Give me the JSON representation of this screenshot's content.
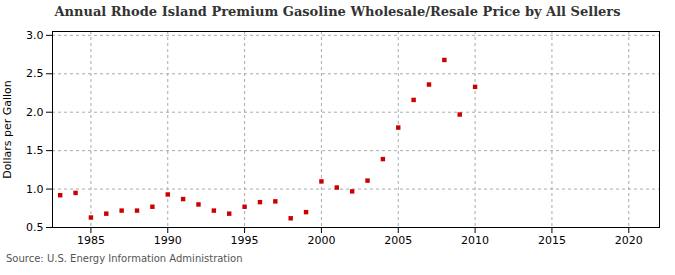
{
  "chart_data": {
    "type": "scatter",
    "title": "Annual Rhode Island Premium Gasoline Wholesale/Resale Price by All Sellers",
    "ylabel": "Dollars per Gallon",
    "annotation": "Source: U.S. Energy Information Administration",
    "x": [
      1983,
      1984,
      1985,
      1986,
      1987,
      1988,
      1989,
      1990,
      1991,
      1992,
      1993,
      1994,
      1995,
      1996,
      1997,
      1998,
      1999,
      2000,
      2001,
      2002,
      2003,
      2004,
      2005,
      2006,
      2007,
      2008,
      2009,
      2010
    ],
    "values": [
      0.92,
      0.95,
      0.63,
      0.68,
      0.72,
      0.72,
      0.77,
      0.93,
      0.87,
      0.8,
      0.72,
      0.68,
      0.77,
      0.83,
      0.84,
      0.62,
      0.7,
      1.1,
      1.02,
      0.97,
      1.11,
      1.39,
      1.8,
      2.16,
      2.36,
      2.68,
      1.97,
      2.33
    ],
    "color": "#cc0000",
    "marker": "square",
    "xlim": [
      1982.5,
      2022
    ],
    "ylim": [
      0.5,
      3.05
    ],
    "xticks": [
      1985,
      1990,
      1995,
      2000,
      2005,
      2010,
      2015,
      2020
    ],
    "yticks": [
      0.5,
      {
        "value": 1,
        "label": "1.0"
      },
      1.5,
      {
        "value": 2,
        "label": "2.0"
      },
      2.5,
      {
        "value": 3,
        "label": "3.0"
      }
    ],
    "grid": true
  }
}
